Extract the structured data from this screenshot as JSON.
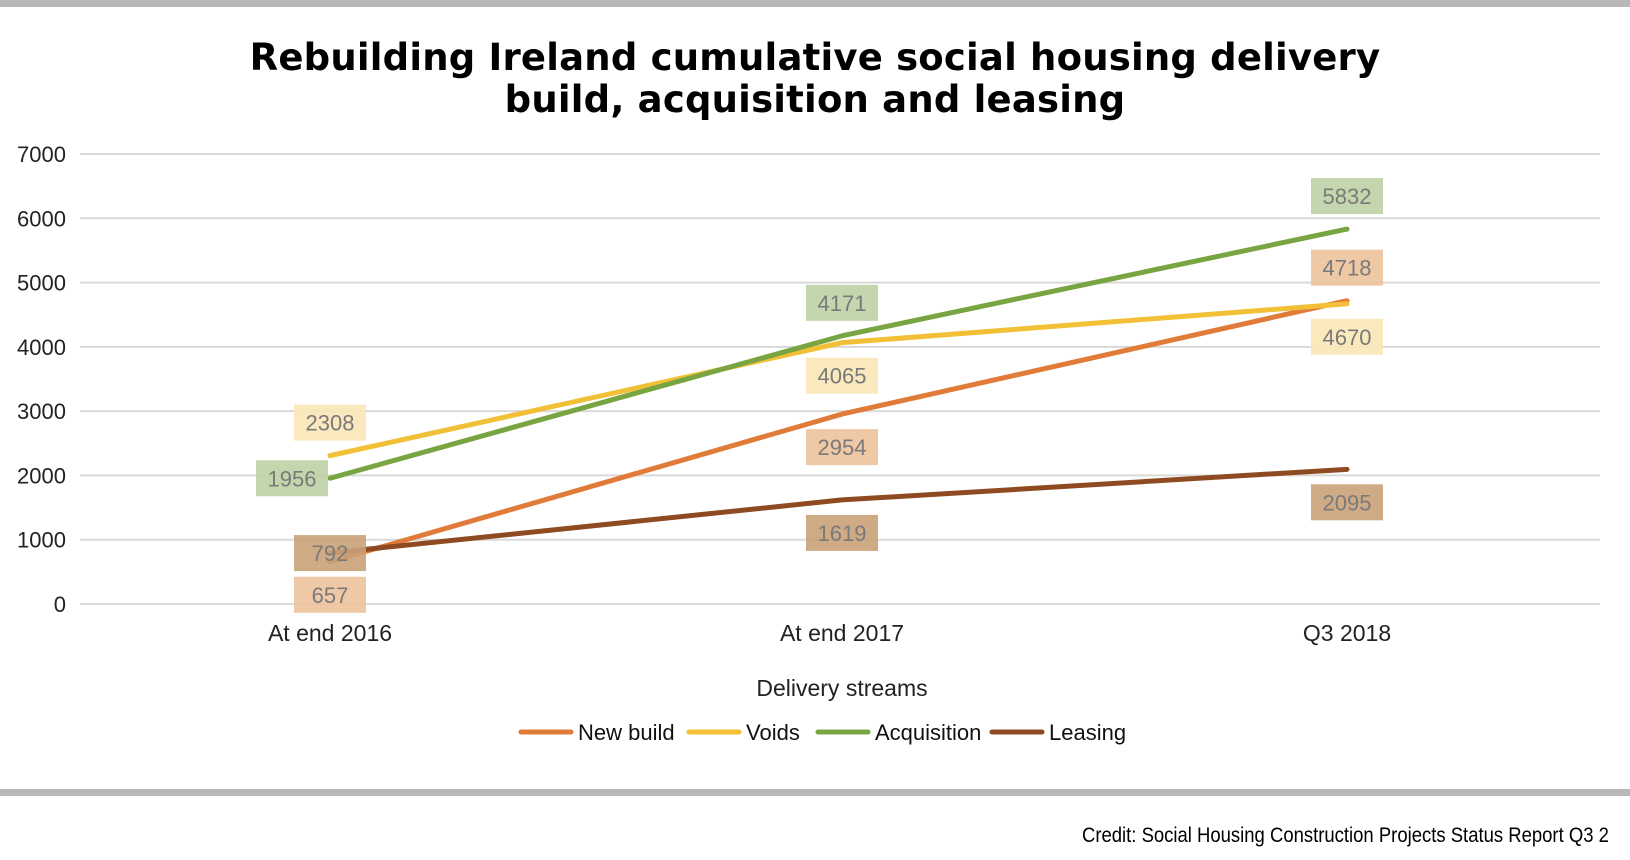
{
  "title_line1": "Rebuilding Ireland cumulative social housing delivery",
  "title_line2": "build, acquisition and leasing",
  "credit": "Credit: Social Housing Construction Projects Status Report Q3 2",
  "chart_data": {
    "type": "line",
    "categories": [
      "At end 2016",
      "At end 2017",
      "Q3 2018"
    ],
    "xlabel": "Delivery streams",
    "ylabel": "",
    "ylim": [
      0,
      7000
    ],
    "yticks": [
      0,
      1000,
      2000,
      3000,
      4000,
      5000,
      6000,
      7000
    ],
    "grid": true,
    "legend_position": "bottom",
    "series": [
      {
        "name": "New build",
        "values": [
          657,
          2954,
          4718
        ],
        "color": "#e07b39",
        "label_bg": "#edc29c",
        "labels": [
          "657",
          "2954",
          "4718"
        ],
        "label_side": [
          "below",
          "below",
          "above"
        ]
      },
      {
        "name": "Voids",
        "values": [
          2308,
          4065,
          4670
        ],
        "color": "#f2c037",
        "label_bg": "#fbe7b7",
        "labels": [
          "2308",
          "4065",
          "4670"
        ],
        "label_side": [
          "above",
          "below",
          "below"
        ]
      },
      {
        "name": "Acquisition",
        "values": [
          1956,
          4171,
          5832
        ],
        "color": "#78a541",
        "label_bg": "#bcd2a4",
        "labels": [
          "1956",
          "4171",
          "5832"
        ],
        "label_side": [
          "left",
          "above",
          "above"
        ]
      },
      {
        "name": "Leasing",
        "values": [
          792,
          1619,
          2095
        ],
        "color": "#8e4a20",
        "label_bg": "#c9a178",
        "labels": [
          "792",
          "1619",
          "2095"
        ],
        "label_side": [
          "center",
          "below",
          "below"
        ]
      }
    ]
  }
}
